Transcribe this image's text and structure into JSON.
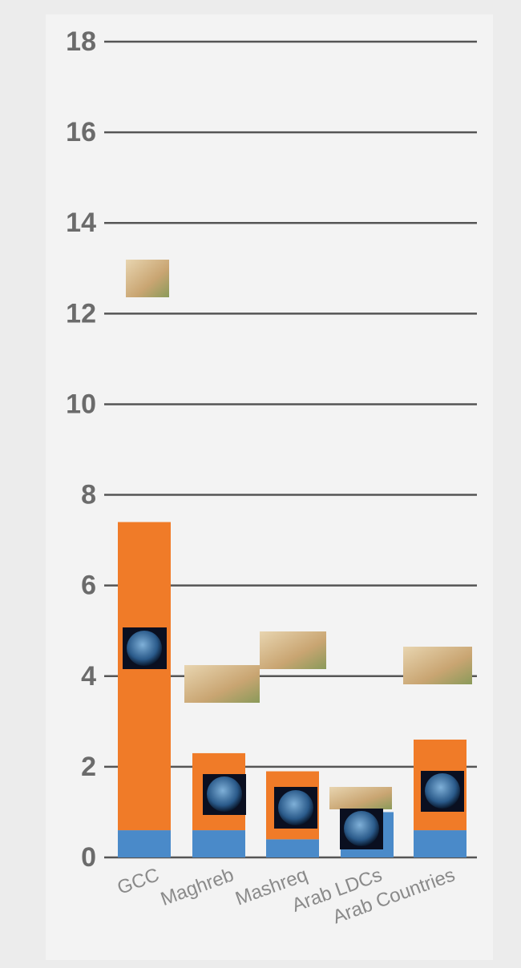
{
  "chart_data": {
    "type": "bar",
    "stacked": true,
    "categories": [
      "GCC",
      "Maghreb",
      "Mashreq",
      "Arab LDCs",
      "Arab Countries"
    ],
    "series": [
      {
        "color": "#4a8ac9",
        "values": [
          0.6,
          0.6,
          0.4,
          1.0,
          0.6
        ]
      },
      {
        "color": "#f07b28",
        "values": [
          6.8,
          1.7,
          1.5,
          0,
          2.0
        ]
      }
    ],
    "ylim": [
      0,
      18
    ],
    "yticks": [
      0,
      2,
      4,
      6,
      8,
      10,
      12,
      14,
      16,
      18
    ],
    "grid": true
  }
}
